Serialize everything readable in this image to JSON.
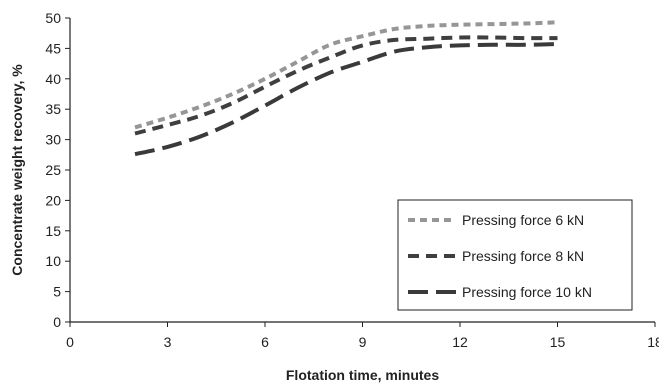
{
  "chart_data": {
    "type": "line",
    "xlabel": "Flotation time, minutes",
    "ylabel": "Concentrate weight recovery, %",
    "xlim": [
      0,
      18
    ],
    "ylim": [
      0,
      50
    ],
    "x_ticks": [
      "0",
      "3",
      "6",
      "9",
      "12",
      "15",
      "18"
    ],
    "y_ticks": [
      "0",
      "5",
      "10",
      "15",
      "20",
      "25",
      "30",
      "35",
      "40",
      "45",
      "50"
    ],
    "grid": false,
    "legend_position": "bottom-right",
    "series": [
      {
        "name": "Pressing force 6 kN",
        "color": "#969696",
        "dash": "short-dash",
        "x": [
          2,
          3,
          4,
          5,
          6,
          7,
          8,
          9,
          10,
          11,
          12,
          13,
          14,
          15
        ],
        "y": [
          32.0,
          33.6,
          35.4,
          37.5,
          40.0,
          42.8,
          45.6,
          47.0,
          48.2,
          48.7,
          48.9,
          49.0,
          49.1,
          49.3
        ]
      },
      {
        "name": "Pressing force 8 kN",
        "color": "#3f3f3f",
        "dash": "dash",
        "x": [
          2,
          3,
          4,
          5,
          6,
          7,
          8,
          9,
          10,
          11,
          12,
          13,
          14,
          15
        ],
        "y": [
          31.0,
          32.4,
          33.9,
          36.0,
          38.7,
          41.3,
          43.5,
          45.5,
          46.4,
          46.6,
          46.8,
          46.8,
          46.7,
          46.7
        ]
      },
      {
        "name": "Pressing force 10 kN",
        "color": "#3a3a3a",
        "dash": "long-dash",
        "x": [
          2,
          3,
          4,
          5,
          6,
          7,
          8,
          9,
          10,
          11,
          12,
          13,
          14,
          15
        ],
        "y": [
          27.6,
          28.8,
          30.5,
          32.8,
          35.6,
          38.5,
          41.0,
          42.8,
          44.5,
          45.2,
          45.5,
          45.6,
          45.6,
          45.7
        ]
      }
    ]
  }
}
